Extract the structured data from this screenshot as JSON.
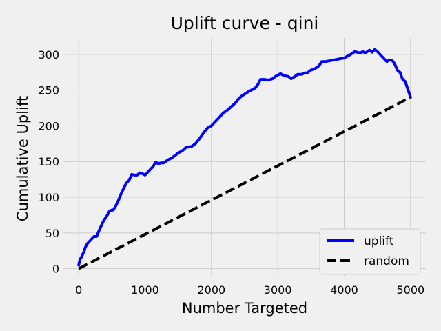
{
  "chart_data": {
    "type": "line",
    "title": "Uplift curve - qini",
    "xlabel": "Number Targeted",
    "ylabel": "Cumulative Uplift",
    "xlim": [
      -230,
      5230
    ],
    "ylim": [
      -10,
      323
    ],
    "xticks": [
      0,
      1000,
      2000,
      3000,
      4000,
      5000
    ],
    "yticks": [
      0,
      50,
      100,
      150,
      200,
      250,
      300
    ],
    "grid": true,
    "legend_position": "lower-right",
    "background": "#f0f0f0",
    "grid_color": "#cbcbcb",
    "series": [
      {
        "name": "uplift",
        "color": "#0000ff",
        "style": "solid",
        "x": [
          0,
          20,
          40,
          80,
          100,
          130,
          180,
          230,
          270,
          300,
          340,
          380,
          420,
          460,
          490,
          520,
          560,
          600,
          640,
          680,
          720,
          760,
          800,
          840,
          880,
          920,
          960,
          1000,
          1040,
          1080,
          1120,
          1160,
          1200,
          1240,
          1280,
          1340,
          1400,
          1460,
          1500,
          1560,
          1620,
          1700,
          1760,
          1820,
          1880,
          1940,
          2000,
          2060,
          2120,
          2180,
          2240,
          2300,
          2360,
          2410,
          2460,
          2560,
          2660,
          2700,
          2740,
          2800,
          2860,
          2920,
          2980,
          3040,
          3100,
          3160,
          3200,
          3240,
          3300,
          3360,
          3400,
          3440,
          3500,
          3560,
          3620,
          3660,
          3720,
          4000,
          4100,
          4160,
          4240,
          4280,
          4320,
          4380,
          4420,
          4460,
          4500,
          4540,
          4600,
          4640,
          4680,
          4720,
          4760,
          4800,
          4840,
          4880,
          4920,
          5000
        ],
        "y": [
          5,
          13,
          16,
          24,
          30,
          35,
          40,
          45,
          45,
          52,
          60,
          68,
          73,
          80,
          82,
          82,
          88,
          96,
          105,
          113,
          120,
          124,
          132,
          131,
          131,
          134,
          133,
          131,
          135,
          139,
          143,
          149,
          147,
          148,
          148,
          152,
          155,
          159,
          162,
          165,
          170,
          171,
          175,
          182,
          190,
          197,
          200,
          206,
          212,
          218,
          222,
          227,
          232,
          238,
          242,
          248,
          253,
          258,
          265,
          265,
          264,
          266,
          270,
          273,
          270,
          269,
          266,
          268,
          272,
          272,
          274,
          274,
          278,
          280,
          284,
          290,
          290,
          295,
          300,
          304,
          302,
          304,
          302,
          306,
          303,
          307,
          304,
          300,
          294,
          290,
          292,
          292,
          287,
          278,
          275,
          265,
          262,
          240
        ]
      },
      {
        "name": "random",
        "color": "#000000",
        "style": "dashed",
        "x": [
          0,
          5000
        ],
        "y": [
          0,
          240
        ]
      }
    ]
  }
}
